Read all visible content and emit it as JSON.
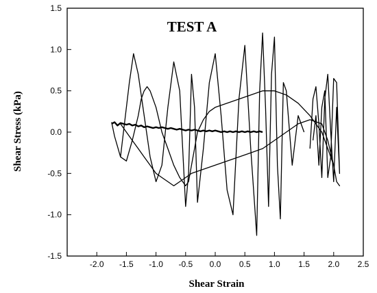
{
  "chart_data": {
    "type": "line",
    "title": "TEST A",
    "xlabel": "Shear Strain",
    "ylabel": "Shear Stress (kPa)",
    "xlim": [
      -2.5,
      2.5
    ],
    "ylim": [
      -1.5,
      1.5
    ],
    "x_ticks": [
      -2.0,
      -1.5,
      -1.0,
      -0.5,
      0.0,
      0.5,
      1.0,
      1.5,
      2.0,
      2.5
    ],
    "x_tick_labels": [
      "-2.0",
      "-1.5",
      "-1.0",
      "-0.5",
      "0.0",
      "0.5",
      "1.0",
      "1.5",
      "2.0",
      "2.5"
    ],
    "y_ticks": [
      -1.5,
      -1.0,
      -0.5,
      0.0,
      0.5,
      1.0,
      1.5
    ],
    "y_tick_labels": [
      "-1.5",
      "-1.0",
      "-0.5",
      "0.0",
      "0.5",
      "1.0",
      "1.5"
    ],
    "grid": false,
    "legend": "none",
    "line_color": "#000000",
    "series": [
      {
        "x": [
          -1.75,
          -1.7,
          -1.65,
          -1.6,
          -1.55,
          -1.5,
          -1.45,
          -1.4,
          -1.35,
          -1.3,
          -1.25,
          -1.2,
          -1.15,
          -1.1,
          -1.05,
          -1.0,
          -0.95,
          -0.9,
          -0.85,
          -0.8,
          -0.75,
          -0.7,
          -0.65,
          -0.6,
          -0.55,
          -0.5,
          -0.45,
          -0.4,
          -0.35,
          -0.3,
          -0.25,
          -0.2,
          -0.15,
          -0.1,
          -0.05,
          0.0,
          0.05,
          0.1,
          0.15,
          0.2,
          0.25,
          0.3,
          0.35,
          0.4,
          0.45,
          0.5,
          0.55,
          0.6,
          0.65,
          0.7,
          0.75,
          0.8
        ],
        "y": [
          0.1,
          0.12,
          0.08,
          0.11,
          0.1,
          0.09,
          0.1,
          0.08,
          0.09,
          0.07,
          0.08,
          0.06,
          0.07,
          0.06,
          0.05,
          0.06,
          0.05,
          0.06,
          0.05,
          0.04,
          0.05,
          0.04,
          0.03,
          0.04,
          0.03,
          0.02,
          0.03,
          0.02,
          0.03,
          0.02,
          0.01,
          0.02,
          0.01,
          0.02,
          0.01,
          0.02,
          0.01,
          0.0,
          0.01,
          0.0,
          0.01,
          0.0,
          0.01,
          0.0,
          0.01,
          0.0,
          0.01,
          0.0,
          0.01,
          0.0,
          0.01,
          0.0
        ]
      },
      {
        "x": [
          -1.75,
          -1.7,
          -1.6,
          -1.5,
          -1.4,
          -1.3,
          -1.25,
          -1.2,
          -1.15,
          -1.1,
          -1.0,
          -0.9,
          -0.8,
          -0.7,
          -0.6,
          -0.5,
          -0.45,
          -0.4,
          -0.35,
          -0.3,
          -0.2,
          -0.1,
          0.0,
          0.2,
          0.4,
          0.6,
          0.8,
          1.0,
          1.2,
          1.4,
          1.6,
          1.8,
          1.9,
          2.0,
          2.05,
          2.1,
          2.05,
          2.0,
          1.9,
          1.8,
          1.6,
          1.4,
          1.2,
          1.0,
          0.8,
          0.6,
          0.4,
          0.2,
          0.0,
          -0.2,
          -0.4,
          -0.5,
          -0.6,
          -0.7,
          -0.8,
          -0.9,
          -1.0,
          -1.1,
          -1.2,
          -1.3,
          -1.4,
          -1.5,
          -1.55,
          -1.6
        ],
        "y": [
          0.12,
          -0.05,
          -0.3,
          -0.35,
          -0.1,
          0.2,
          0.4,
          0.5,
          0.55,
          0.5,
          0.3,
          0.0,
          -0.2,
          -0.4,
          -0.55,
          -0.65,
          -0.6,
          -0.4,
          -0.2,
          0.0,
          0.15,
          0.25,
          0.3,
          0.35,
          0.4,
          0.45,
          0.5,
          0.5,
          0.45,
          0.35,
          0.2,
          0.0,
          -0.2,
          -0.4,
          -0.6,
          -0.65,
          -0.6,
          -0.4,
          -0.1,
          0.1,
          0.15,
          0.1,
          0.0,
          -0.1,
          -0.2,
          -0.25,
          -0.3,
          -0.35,
          -0.4,
          -0.45,
          -0.5,
          -0.55,
          -0.6,
          -0.65,
          -0.6,
          -0.55,
          -0.5,
          -0.4,
          -0.3,
          -0.2,
          -0.1,
          0.0,
          0.05,
          0.1
        ]
      },
      {
        "x": [
          -1.6,
          -1.45,
          -1.38,
          -1.3,
          -1.2,
          -1.1,
          -1.0,
          -0.9,
          -0.8,
          -0.7,
          -0.6,
          -0.55,
          -0.5,
          -0.45,
          -0.4,
          -0.35,
          -0.3,
          -0.2,
          -0.1,
          0.0,
          0.1,
          0.2,
          0.3,
          0.4,
          0.5,
          0.6,
          0.7,
          0.75,
          0.8,
          0.85,
          0.9,
          0.95,
          1.0,
          1.05,
          1.1,
          1.15,
          1.2,
          1.3,
          1.4,
          1.5
        ],
        "y": [
          -0.3,
          0.6,
          0.95,
          0.7,
          0.2,
          -0.3,
          -0.6,
          -0.4,
          0.3,
          0.85,
          0.5,
          -0.2,
          -0.9,
          -0.5,
          0.7,
          0.3,
          -0.85,
          -0.2,
          0.6,
          0.95,
          0.2,
          -0.7,
          -1.0,
          0.4,
          1.05,
          -0.2,
          -1.25,
          0.5,
          1.2,
          0.3,
          -0.9,
          0.7,
          1.15,
          -0.4,
          -1.05,
          0.6,
          0.5,
          -0.4,
          0.2,
          0.0
        ]
      },
      {
        "x": [
          1.6,
          1.65,
          1.7,
          1.75,
          1.8,
          1.85,
          1.9,
          1.95,
          2.0,
          2.05,
          2.1,
          2.05,
          2.0,
          1.95,
          1.9,
          1.85,
          1.8,
          1.75,
          1.7,
          1.65
        ],
        "y": [
          -0.2,
          0.4,
          0.55,
          0.1,
          -0.55,
          0.4,
          0.7,
          0.0,
          -0.6,
          0.3,
          -0.5,
          0.6,
          0.65,
          -0.3,
          -0.55,
          0.5,
          0.3,
          -0.4,
          0.2,
          -0.1
        ]
      }
    ]
  }
}
